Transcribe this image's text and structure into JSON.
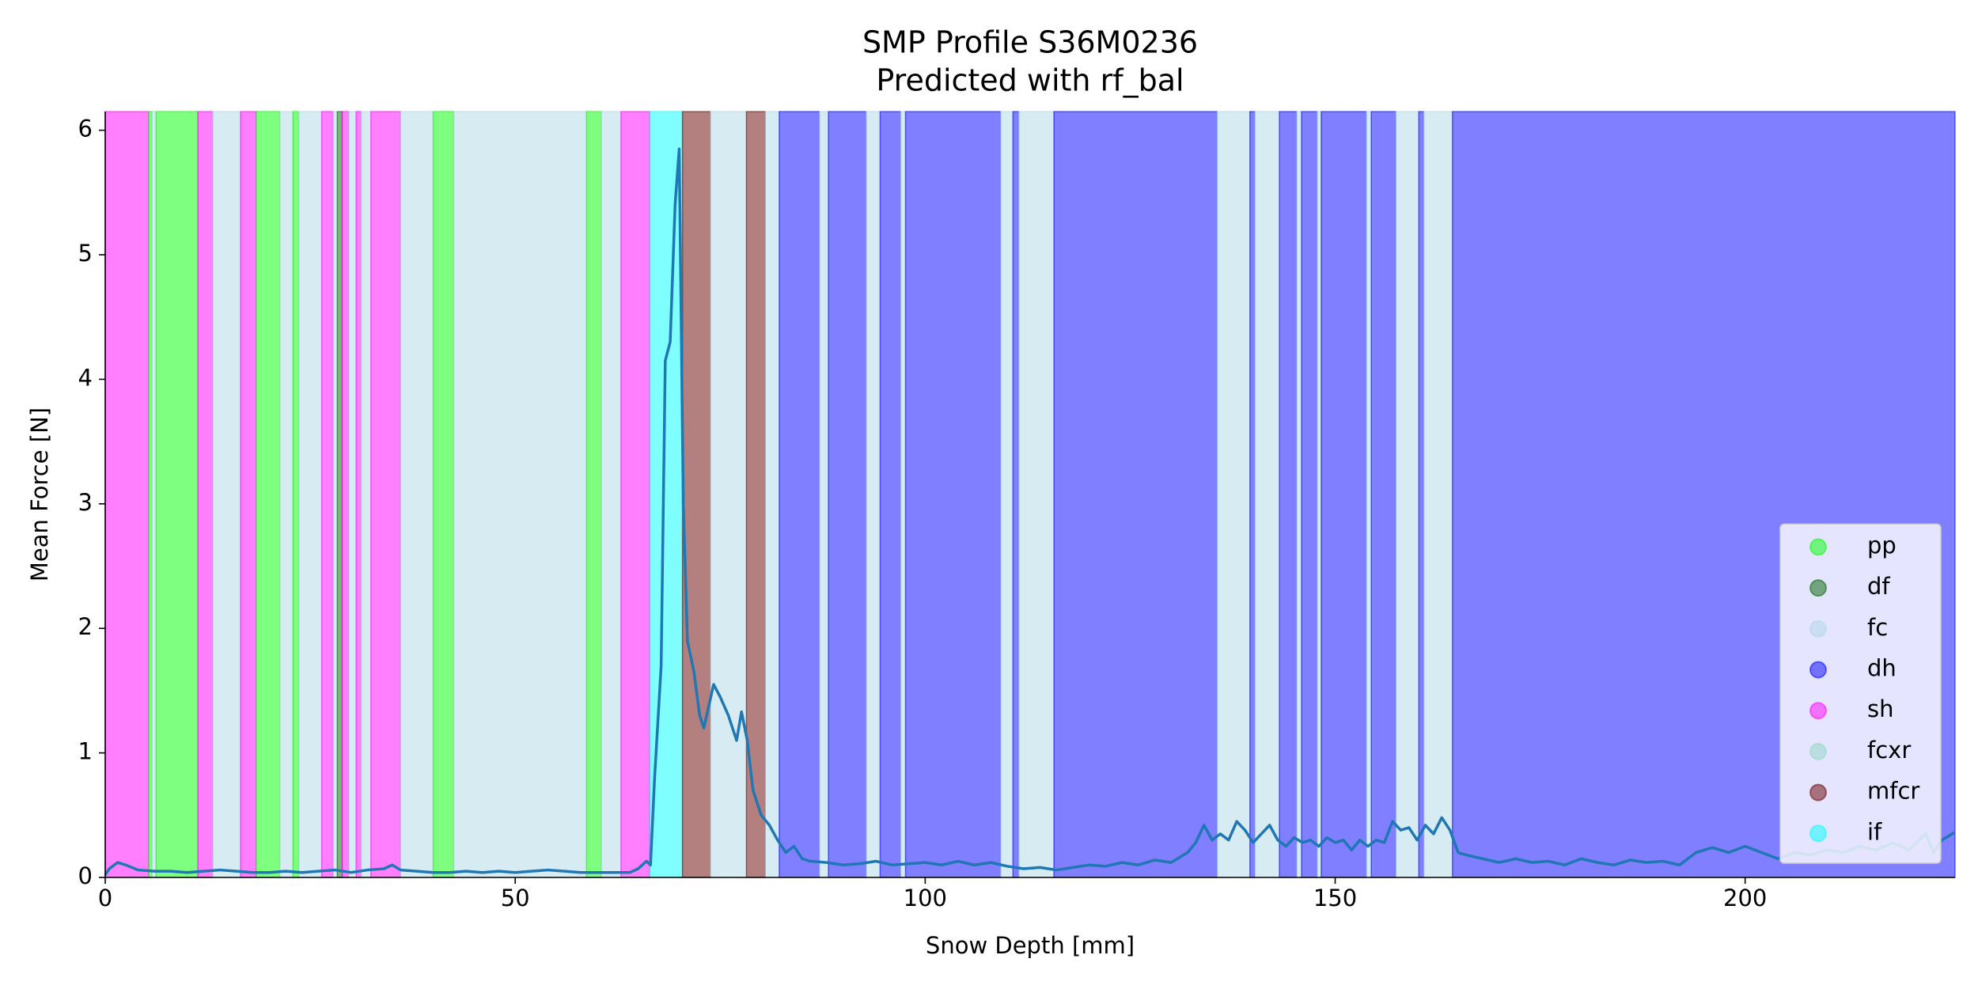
{
  "chart_data": {
    "type": "line",
    "title": "SMP Profile S36M0236",
    "subtitle": "Predicted with rf_bal",
    "x_label": "Snow Depth [mm]",
    "y_label": "Mean Force [N]",
    "xlim": [
      0,
      225.6
    ],
    "ylim": [
      0,
      6.15
    ],
    "xticks": [
      0,
      50,
      100,
      150,
      200
    ],
    "yticks": [
      0,
      1,
      2,
      3,
      4,
      5,
      6
    ],
    "legend_position": "lower right",
    "legend": [
      {
        "name": "pp",
        "color": "#00ff00"
      },
      {
        "name": "df",
        "color": "#006400"
      },
      {
        "name": "fc",
        "color": "#add8e6"
      },
      {
        "name": "dh",
        "color": "#0000ff"
      },
      {
        "name": "sh",
        "color": "#ff00ff"
      },
      {
        "name": "fcxr",
        "color": "#8fd8bf"
      },
      {
        "name": "mfcr",
        "color": "#690000"
      },
      {
        "name": "if",
        "color": "#00ffff"
      }
    ],
    "segments": [
      {
        "label": "sh",
        "start": 0,
        "end": 5.3
      },
      {
        "label": "pp",
        "start": 5.3,
        "end": 5.7
      },
      {
        "label": "fc",
        "start": 5.7,
        "end": 6.2
      },
      {
        "label": "pp",
        "start": 6.2,
        "end": 11.3
      },
      {
        "label": "sh",
        "start": 11.3,
        "end": 13.1
      },
      {
        "label": "fc",
        "start": 13.1,
        "end": 16.5
      },
      {
        "label": "sh",
        "start": 16.5,
        "end": 18.4
      },
      {
        "label": "pp",
        "start": 18.4,
        "end": 21.3
      },
      {
        "label": "fc",
        "start": 21.3,
        "end": 22.9
      },
      {
        "label": "pp",
        "start": 22.9,
        "end": 23.6
      },
      {
        "label": "fc",
        "start": 23.6,
        "end": 26.4
      },
      {
        "label": "sh",
        "start": 26.4,
        "end": 27.8
      },
      {
        "label": "fc",
        "start": 27.8,
        "end": 28.3
      },
      {
        "label": "df",
        "start": 28.3,
        "end": 28.9
      },
      {
        "label": "sh",
        "start": 28.9,
        "end": 29.7
      },
      {
        "label": "fc",
        "start": 29.7,
        "end": 30.6
      },
      {
        "label": "sh",
        "start": 30.6,
        "end": 31.2
      },
      {
        "label": "fc",
        "start": 31.2,
        "end": 32.4
      },
      {
        "label": "sh",
        "start": 32.4,
        "end": 36.0
      },
      {
        "label": "fc",
        "start": 36.0,
        "end": 40.0
      },
      {
        "label": "pp",
        "start": 40.0,
        "end": 42.5
      },
      {
        "label": "fc",
        "start": 42.5,
        "end": 58.7
      },
      {
        "label": "pp",
        "start": 58.7,
        "end": 60.5
      },
      {
        "label": "fc",
        "start": 60.5,
        "end": 62.9
      },
      {
        "label": "sh",
        "start": 62.9,
        "end": 66.4
      },
      {
        "label": "if",
        "start": 66.4,
        "end": 70.4
      },
      {
        "label": "mfcr",
        "start": 70.4,
        "end": 73.8
      },
      {
        "label": "fc",
        "start": 73.8,
        "end": 78.2
      },
      {
        "label": "mfcr",
        "start": 78.2,
        "end": 80.5
      },
      {
        "label": "fc",
        "start": 80.5,
        "end": 82.2
      },
      {
        "label": "dh",
        "start": 82.2,
        "end": 87.1
      },
      {
        "label": "fc",
        "start": 87.1,
        "end": 88.2
      },
      {
        "label": "dh",
        "start": 88.2,
        "end": 92.8
      },
      {
        "label": "fc",
        "start": 92.8,
        "end": 94.5
      },
      {
        "label": "dh",
        "start": 94.5,
        "end": 97.0
      },
      {
        "label": "fc",
        "start": 97.0,
        "end": 97.6
      },
      {
        "label": "dh",
        "start": 97.6,
        "end": 109.2
      },
      {
        "label": "fc",
        "start": 109.2,
        "end": 110.7
      },
      {
        "label": "dh",
        "start": 110.7,
        "end": 111.4
      },
      {
        "label": "fc",
        "start": 111.4,
        "end": 115.7
      },
      {
        "label": "dh",
        "start": 115.7,
        "end": 135.6
      },
      {
        "label": "fc",
        "start": 135.6,
        "end": 139.6
      },
      {
        "label": "dh",
        "start": 139.6,
        "end": 140.2
      },
      {
        "label": "fc",
        "start": 140.2,
        "end": 143.2
      },
      {
        "label": "dh",
        "start": 143.2,
        "end": 145.3
      },
      {
        "label": "fc",
        "start": 145.3,
        "end": 145.9
      },
      {
        "label": "dh",
        "start": 145.9,
        "end": 147.8
      },
      {
        "label": "fc",
        "start": 147.8,
        "end": 148.3
      },
      {
        "label": "dh",
        "start": 148.3,
        "end": 153.8
      },
      {
        "label": "fc",
        "start": 153.8,
        "end": 154.4
      },
      {
        "label": "dh",
        "start": 154.4,
        "end": 157.4
      },
      {
        "label": "fc",
        "start": 157.4,
        "end": 160.2
      },
      {
        "label": "dh",
        "start": 160.2,
        "end": 160.8
      },
      {
        "label": "fc",
        "start": 160.8,
        "end": 164.3
      },
      {
        "label": "dh",
        "start": 164.3,
        "end": 225.6
      }
    ],
    "line_color": "#1f77b4",
    "x": [
      0,
      0.5,
      1.5,
      2.5,
      4,
      6,
      8,
      10,
      12,
      14,
      16,
      18,
      20,
      22,
      24,
      26,
      28,
      30,
      32,
      34,
      35,
      36,
      38,
      40,
      42,
      44,
      46,
      48,
      50,
      52,
      54,
      56,
      58,
      60,
      62,
      64,
      65,
      66,
      66.5,
      67,
      67.8,
      68.3,
      68.9,
      69.5,
      70.0,
      70.5,
      71.0,
      71.8,
      72.5,
      73.0,
      74.2,
      75.0,
      76.0,
      77.0,
      77.6,
      78.3,
      79.0,
      80.0,
      81.0,
      82.0,
      83,
      84,
      85,
      86,
      88,
      90,
      92,
      94,
      96,
      98,
      100,
      102,
      104,
      106,
      108,
      110,
      112,
      114,
      116,
      118,
      120,
      122,
      124,
      126,
      128,
      130,
      132,
      133,
      134,
      135,
      136,
      137,
      138,
      139,
      140,
      141,
      142,
      143,
      144,
      145,
      146,
      147,
      148,
      149,
      150,
      151,
      152,
      153,
      154,
      155,
      156,
      157,
      158,
      159,
      160,
      161,
      162,
      163,
      164,
      165,
      166,
      168,
      170,
      172,
      174,
      176,
      178,
      180,
      182,
      184,
      186,
      188,
      190,
      192,
      194,
      196,
      198,
      200,
      202,
      204,
      206,
      208,
      210,
      212,
      214,
      216,
      218,
      220,
      222,
      223,
      224,
      225.5
    ],
    "values": [
      0.02,
      0.07,
      0.12,
      0.1,
      0.06,
      0.05,
      0.05,
      0.04,
      0.05,
      0.06,
      0.05,
      0.04,
      0.04,
      0.05,
      0.04,
      0.05,
      0.06,
      0.04,
      0.06,
      0.07,
      0.1,
      0.06,
      0.05,
      0.04,
      0.04,
      0.05,
      0.04,
      0.05,
      0.04,
      0.05,
      0.06,
      0.05,
      0.04,
      0.04,
      0.04,
      0.04,
      0.07,
      0.13,
      0.1,
      0.8,
      1.7,
      4.15,
      4.3,
      5.4,
      5.85,
      3.0,
      1.9,
      1.65,
      1.3,
      1.2,
      1.55,
      1.45,
      1.3,
      1.1,
      1.33,
      1.1,
      0.7,
      0.5,
      0.42,
      0.3,
      0.2,
      0.25,
      0.15,
      0.13,
      0.12,
      0.1,
      0.11,
      0.13,
      0.1,
      0.11,
      0.12,
      0.1,
      0.13,
      0.1,
      0.12,
      0.09,
      0.07,
      0.08,
      0.06,
      0.08,
      0.1,
      0.09,
      0.12,
      0.1,
      0.14,
      0.12,
      0.2,
      0.28,
      0.42,
      0.3,
      0.35,
      0.3,
      0.45,
      0.38,
      0.28,
      0.35,
      0.42,
      0.3,
      0.25,
      0.32,
      0.28,
      0.3,
      0.25,
      0.32,
      0.28,
      0.3,
      0.22,
      0.3,
      0.25,
      0.3,
      0.28,
      0.45,
      0.38,
      0.4,
      0.3,
      0.42,
      0.35,
      0.48,
      0.38,
      0.2,
      0.18,
      0.15,
      0.12,
      0.15,
      0.12,
      0.13,
      0.1,
      0.15,
      0.12,
      0.1,
      0.14,
      0.12,
      0.13,
      0.1,
      0.2,
      0.24,
      0.2,
      0.25,
      0.2,
      0.15,
      0.2,
      0.18,
      0.22,
      0.2,
      0.25,
      0.22,
      0.28,
      0.22,
      0.35,
      0.2,
      0.3,
      0.36
    ]
  }
}
